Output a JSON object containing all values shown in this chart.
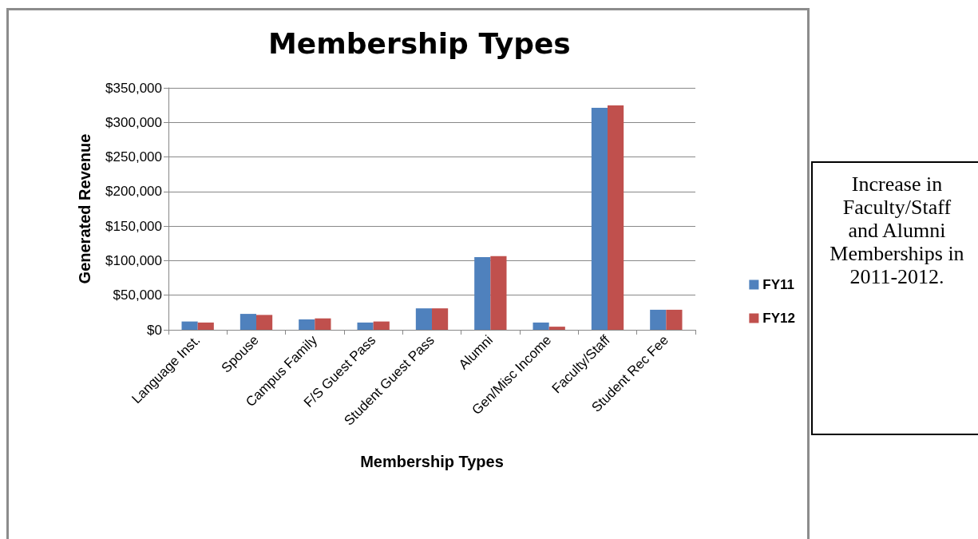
{
  "chart_data": {
    "type": "bar",
    "title": "Membership Types",
    "xlabel": "Membership Types",
    "ylabel": "Generated Revenue",
    "categories": [
      "Language Inst.",
      "Spouse",
      "Campus Family",
      "F/S Guest Pass",
      "Student Guest Pass",
      "Alumni",
      "Gen/Misc Income",
      "Faculty/Staff",
      "Student Rec Fee"
    ],
    "series": [
      {
        "name": "FY11",
        "color": "#4f81bd",
        "values": [
          12000,
          23000,
          15000,
          10500,
          31000,
          105000,
          10500,
          321000,
          29000
        ]
      },
      {
        "name": "FY12",
        "color": "#c0504d",
        "values": [
          10500,
          21500,
          16500,
          12000,
          31000,
          106500,
          4500,
          324500,
          29000
        ]
      }
    ],
    "ylim": [
      0,
      350000
    ],
    "yticks": [
      {
        "value": 0,
        "label": "$0"
      },
      {
        "value": 50000,
        "label": "$50,000"
      },
      {
        "value": 100000,
        "label": "$100,000"
      },
      {
        "value": 150000,
        "label": "$150,000"
      },
      {
        "value": 200000,
        "label": "$200,000"
      },
      {
        "value": 250000,
        "label": "$250,000"
      },
      {
        "value": 300000,
        "label": "$300,000"
      },
      {
        "value": 350000,
        "label": "$350,000"
      }
    ],
    "grid": "y",
    "legend": "right",
    "annotations": [
      "Increase in Faculty/Staff and Alumni Memberships in 2011-2012."
    ]
  }
}
